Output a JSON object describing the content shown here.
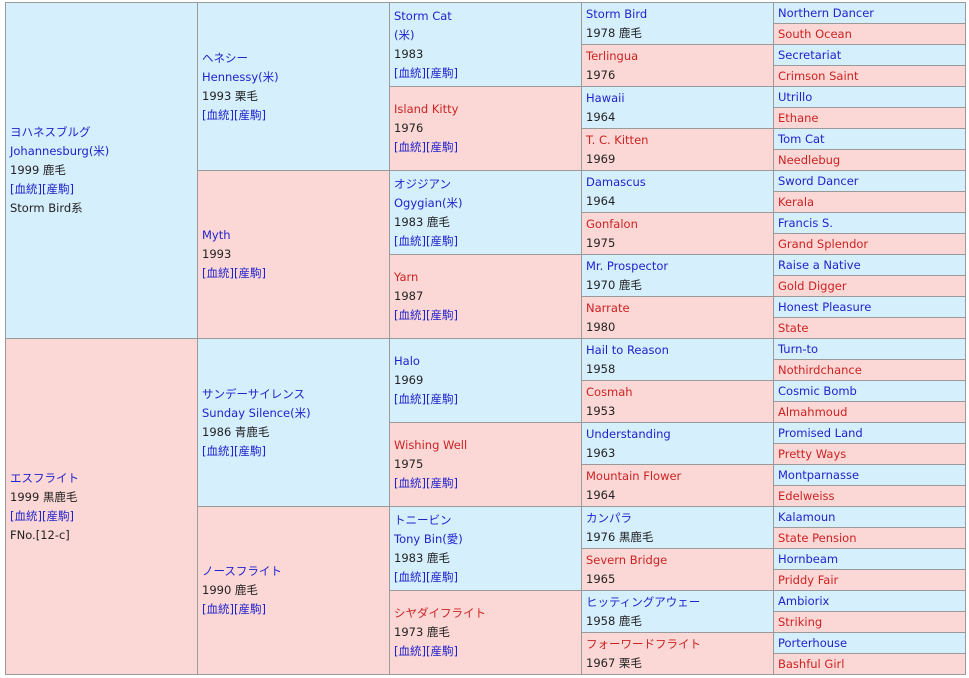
{
  "sire": {
    "name": "ヨハネスブルグ",
    "en": "Johannesburg(米)",
    "year": "1999 鹿毛",
    "links": [
      "[血統]",
      "[産駒]"
    ],
    "line": "Storm Bird系"
  },
  "dam": {
    "name": "エスフライト",
    "year": "1999 黒鹿毛",
    "links": [
      "[血統]",
      "[産駒]"
    ],
    "fno": "FNo.[12-c]"
  },
  "g2": [
    {
      "name": "ヘネシー",
      "en": "Hennessy(米)",
      "year": "1993 栗毛",
      "links": [
        "[血統]",
        "[産駒]"
      ]
    },
    {
      "name": "Myth",
      "year": "1993",
      "links": [
        "[血統]",
        "[産駒]"
      ]
    },
    {
      "name": "サンデーサイレンス",
      "en": "Sunday Silence(米)",
      "year": "1986 青鹿毛",
      "links": [
        "[血統]",
        "[産駒]"
      ]
    },
    {
      "name": "ノースフライト",
      "year": "1990 鹿毛",
      "links": [
        "[血統]",
        "[産駒]"
      ]
    }
  ],
  "g3": [
    {
      "name": "Storm Cat",
      "en": "(米)",
      "year": "1983",
      "links": [
        "[血統]",
        "[産駒]"
      ]
    },
    {
      "name": "Island Kitty",
      "year": "1976",
      "links": [
        "[血統]",
        "[産駒]"
      ]
    },
    {
      "name": "オジジアン",
      "en": "Ogygian(米)",
      "year": "1983 鹿毛",
      "links": [
        "[血統]",
        "[産駒]"
      ]
    },
    {
      "name": "Yarn",
      "year": "1987",
      "links": [
        "[血統]",
        "[産駒]"
      ]
    },
    {
      "name": "Halo",
      "year": "1969",
      "links": [
        "[血統]",
        "[産駒]"
      ]
    },
    {
      "name": "Wishing Well",
      "year": "1975",
      "links": [
        "[血統]",
        "[産駒]"
      ]
    },
    {
      "name": "トニービン",
      "en": "Tony Bin(愛)",
      "year": "1983 鹿毛",
      "links": [
        "[血統]",
        "[産駒]"
      ]
    },
    {
      "name": "シヤダイフライト",
      "year": "1973 鹿毛",
      "links": [
        "[血統]",
        "[産駒]"
      ]
    }
  ],
  "g4": [
    {
      "name": "Storm Bird",
      "year": "1978 鹿毛"
    },
    {
      "name": "Terlingua",
      "year": "1976"
    },
    {
      "name": "Hawaii",
      "year": "1964"
    },
    {
      "name": "T. C. Kitten",
      "year": "1969"
    },
    {
      "name": "Damascus",
      "year": "1964"
    },
    {
      "name": "Gonfalon",
      "year": "1975"
    },
    {
      "name": "Mr. Prospector",
      "year": "1970 鹿毛"
    },
    {
      "name": "Narrate",
      "year": "1980"
    },
    {
      "name": "Hail to Reason",
      "year": "1958"
    },
    {
      "name": "Cosmah",
      "year": "1953"
    },
    {
      "name": "Understanding",
      "year": "1963"
    },
    {
      "name": "Mountain Flower",
      "year": "1964"
    },
    {
      "name": "カンパラ",
      "year": "1976 黒鹿毛"
    },
    {
      "name": "Severn Bridge",
      "year": "1965"
    },
    {
      "name": "ヒッティングアウェー",
      "year": "1958 鹿毛"
    },
    {
      "name": "フォーワードフライト",
      "year": "1967 栗毛"
    }
  ],
  "g5": [
    "Northern Dancer",
    "South Ocean",
    "Secretariat",
    "Crimson Saint",
    "Utrillo",
    "Ethane",
    "Tom Cat",
    "Needlebug",
    "Sword Dancer",
    "Kerala",
    "Francis S.",
    "Grand Splendor",
    "Raise a Native",
    "Gold Digger",
    "Honest Pleasure",
    "State",
    "Turn-to",
    "Nothirdchance",
    "Cosmic Bomb",
    "Almahmoud",
    "Promised Land",
    "Pretty Ways",
    "Montparnasse",
    "Edelweiss",
    "Kalamoun",
    "State Pension",
    "Hornbeam",
    "Priddy Fair",
    "Ambiorix",
    "Striking",
    "Porterhouse",
    "Bashful Girl"
  ],
  "colors": {
    "male_bg": "#d5effc",
    "female_bg": "#fbd8d6",
    "border": "#9a9a9a",
    "link": "#2222cc",
    "female_link": "#cc2222"
  }
}
